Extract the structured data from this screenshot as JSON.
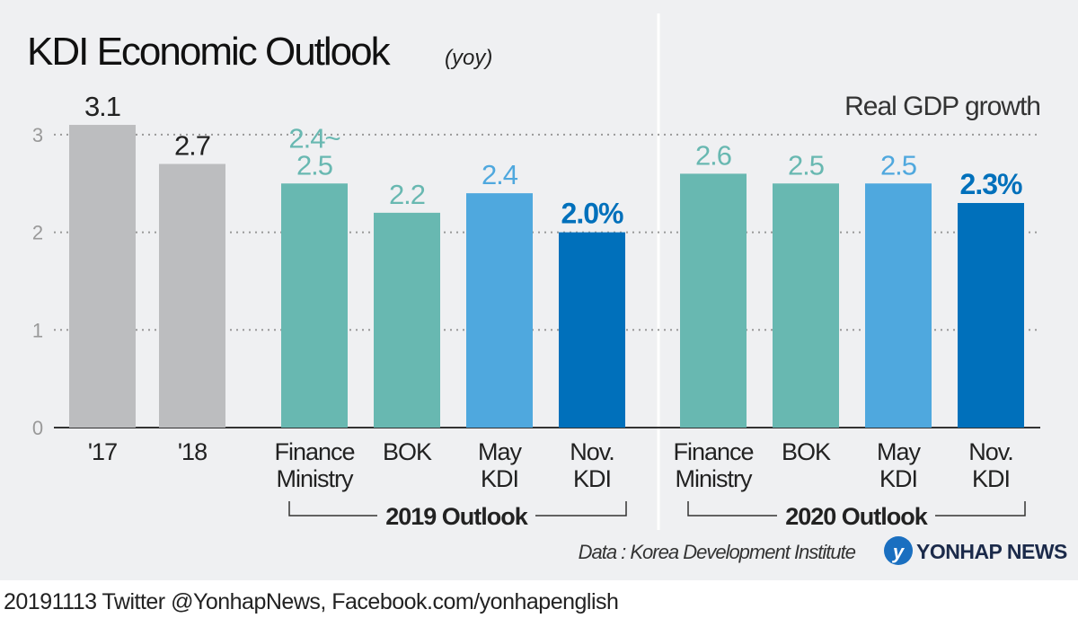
{
  "chart_data": {
    "type": "bar",
    "title": "KDI Economic Outlook",
    "subtitle": "(yoy)",
    "series_label": "Real GDP growth",
    "ylim": [
      0,
      3
    ],
    "yticks": [
      "0",
      "1",
      "2",
      "3"
    ],
    "grid": true,
    "categories": [
      "'17",
      "'18",
      "Finance Ministry",
      "BOK",
      "May KDI",
      "Nov. KDI",
      "Finance Ministry",
      "BOK",
      "May KDI",
      "Nov. KDI"
    ],
    "category_lines": [
      [
        "'17"
      ],
      [
        "'18"
      ],
      [
        "Finance",
        "Ministry"
      ],
      [
        "BOK"
      ],
      [
        "May",
        "KDI"
      ],
      [
        "Nov.",
        "KDI"
      ],
      [
        "Finance",
        "Ministry"
      ],
      [
        "BOK"
      ],
      [
        "May",
        "KDI"
      ],
      [
        "Nov.",
        "KDI"
      ]
    ],
    "values": [
      3.1,
      2.7,
      2.5,
      2.2,
      2.4,
      2.0,
      2.6,
      2.5,
      2.5,
      2.3
    ],
    "data_labels": [
      [
        "3.1"
      ],
      [
        "2.7"
      ],
      [
        "2.4~",
        "2.5"
      ],
      [
        "2.2"
      ],
      [
        "2.4"
      ],
      [
        "2.0%"
      ],
      [
        "2.6"
      ],
      [
        "2.5"
      ],
      [
        "2.5"
      ],
      [
        "2.3%"
      ]
    ],
    "groups": [
      "2019 Outlook",
      "2020 Outlook"
    ],
    "source": "Data : Korea Development Institute",
    "colors": {
      "actual": "#bcbdbf",
      "finance_bok": "#68b8b1",
      "may_kdi": "#4fa8de",
      "nov_kdi": "#0070bb"
    }
  },
  "logo": "YONHAP NEWS",
  "footer": "20191113  Twitter @YonhapNews,  Facebook.com/yonhapenglish"
}
